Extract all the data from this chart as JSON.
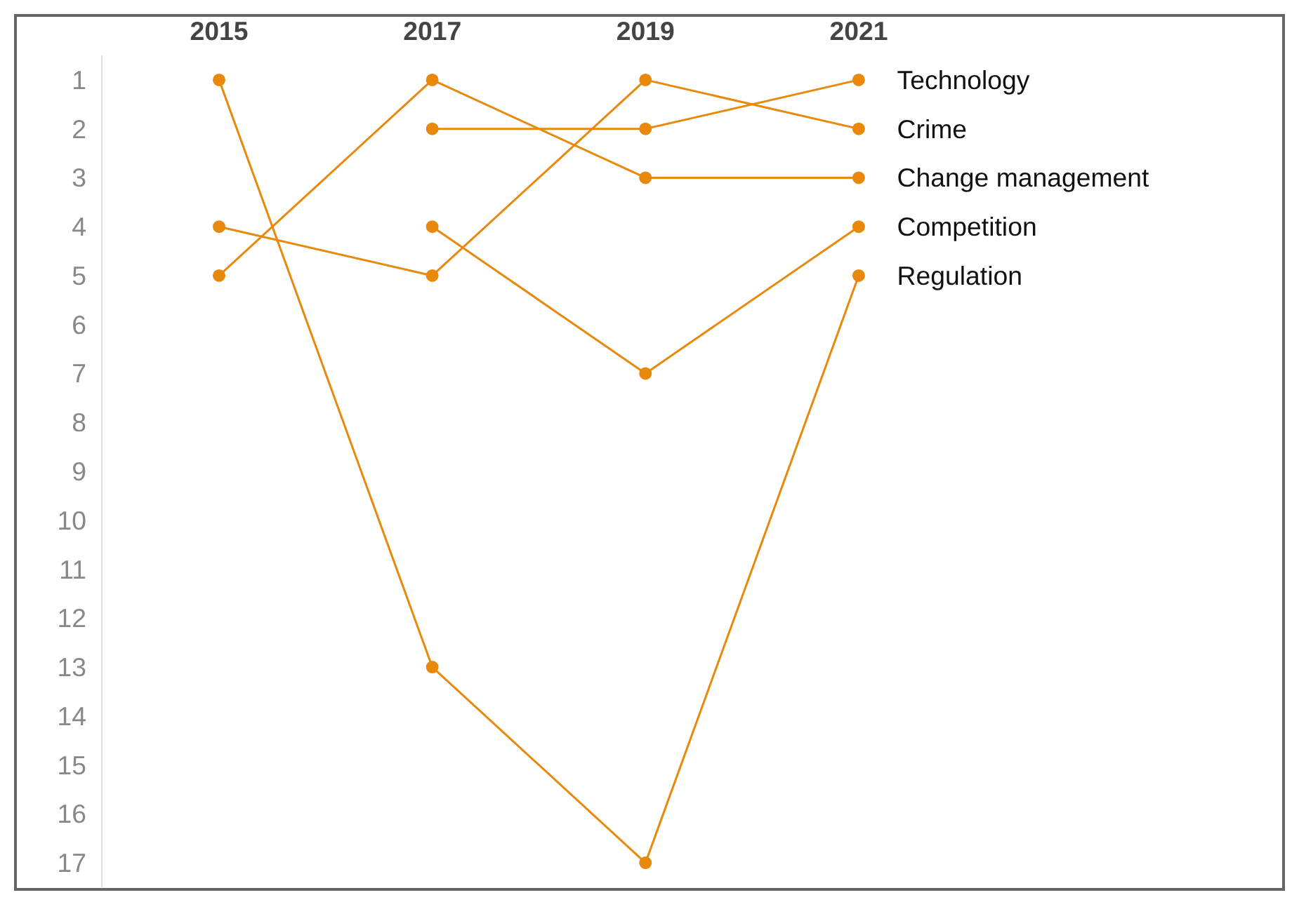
{
  "chart_data": {
    "type": "line",
    "categories": [
      "2015",
      "2017",
      "2019",
      "2021"
    ],
    "series": [
      {
        "name": "Technology",
        "color": "#e8890c",
        "values": [
          null,
          2,
          2,
          1
        ]
      },
      {
        "name": "Crime",
        "color": "#e8890c",
        "values": [
          4,
          5,
          1,
          2
        ]
      },
      {
        "name": "Change management",
        "color": "#e8890c",
        "values": [
          5,
          1,
          3,
          3
        ]
      },
      {
        "name": "Competition",
        "color": "#e8890c",
        "values": [
          null,
          4,
          7,
          4
        ]
      },
      {
        "name": "Regulation",
        "color": "#e8890c",
        "values": [
          1,
          13,
          17,
          5
        ]
      }
    ],
    "ylim": [
      17.5,
      0.5
    ],
    "yticks": [
      1,
      2,
      3,
      4,
      5,
      6,
      7,
      8,
      9,
      10,
      11,
      12,
      13,
      14,
      15,
      16,
      17
    ],
    "grid": false,
    "legend": false,
    "marker": "circle",
    "line_style": "solid"
  }
}
